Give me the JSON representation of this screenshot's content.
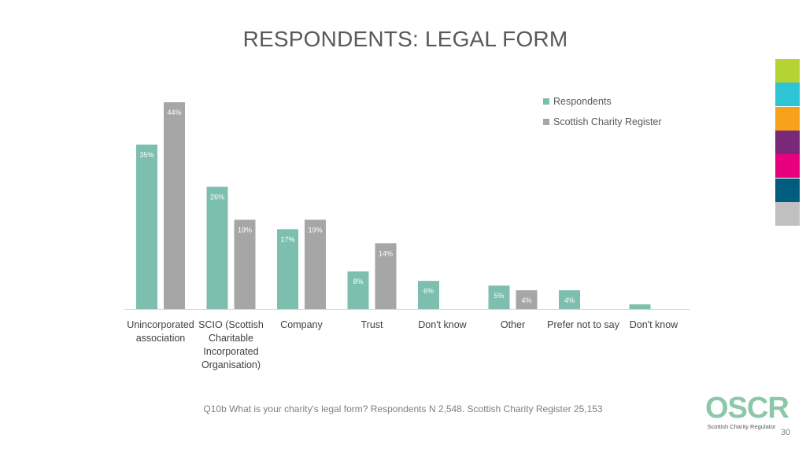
{
  "slide": {
    "title": "RESPONDENTS: LEGAL FORM",
    "footnote": "Q10b What is your charity's legal form? Respondents N 2,548. Scottish Charity Register 25,153",
    "page_number": "30",
    "logo_text": "OSCR",
    "logo_subtitle": "Scottish Charity Regulator",
    "strip_colors": [
      "#b5d334",
      "#2ec4d6",
      "#f7a21b",
      "#7a2878",
      "#e6007e",
      "#005d7f",
      "#c0c0c0"
    ]
  },
  "chart_data": {
    "type": "bar",
    "categories": [
      "Unincorporated association",
      "SCIO (Scottish Charitable Incorporated Organisation)",
      "Company",
      "Trust",
      "Don't know",
      "Other",
      "Prefer not to say",
      "Don't know"
    ],
    "series": [
      {
        "name": "Respondents",
        "color": "#7dbfae",
        "values": [
          35,
          26,
          17,
          8,
          6,
          5,
          4,
          1
        ],
        "labels": [
          "35%",
          "26%",
          "17%",
          "8%",
          "6%",
          "5%",
          "4%",
          null
        ]
      },
      {
        "name": "Scottish Charity Register",
        "color": "#a6a6a6",
        "values": [
          44,
          19,
          19,
          14,
          null,
          4,
          null,
          null
        ],
        "labels": [
          "44%",
          "19%",
          "19%",
          "14%",
          null,
          "4%",
          null,
          null
        ]
      }
    ],
    "legend": "top-right",
    "grid": false,
    "ylim": [
      0,
      44
    ]
  }
}
